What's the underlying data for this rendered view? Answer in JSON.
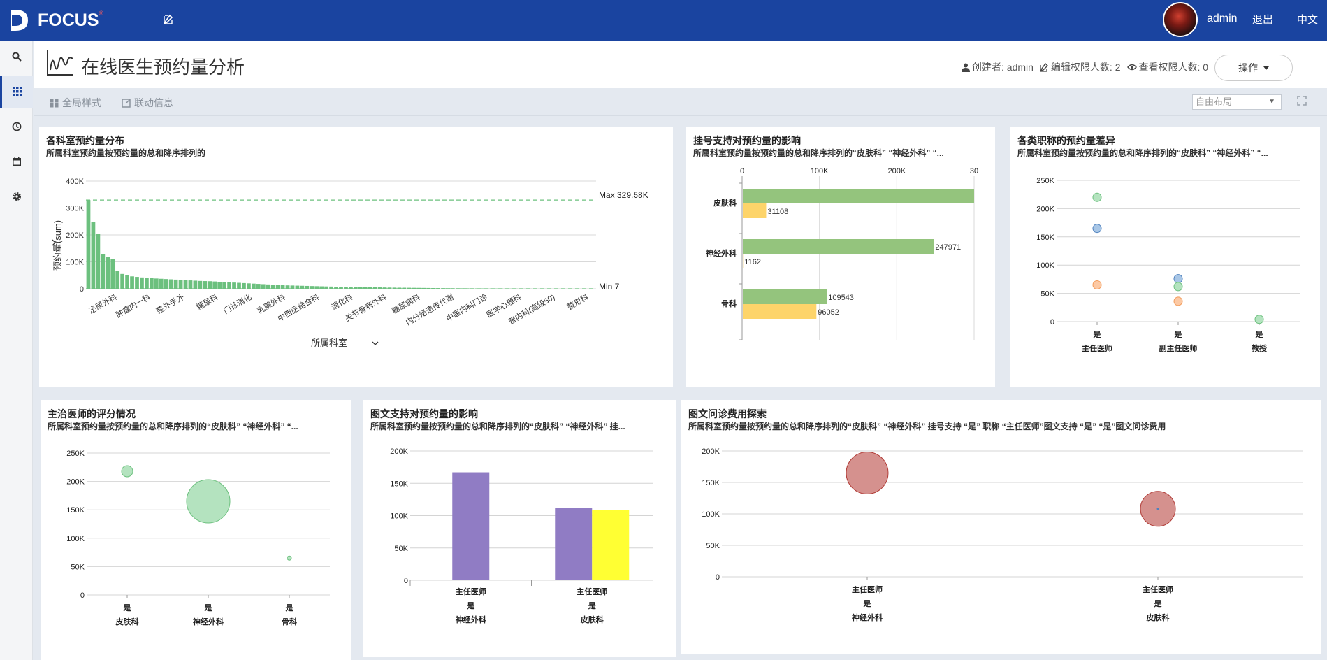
{
  "app": {
    "brand": "FOCUS",
    "brand_mark": "®",
    "user": "admin",
    "logout": "退出",
    "lang": "中文"
  },
  "page": {
    "title": "在线医生预约量分析",
    "creator": "创建者: admin",
    "edit_perm": "编辑权限人数: 2",
    "view_perm": "查看权限人数: 0",
    "op_label": "操作"
  },
  "toolbar": {
    "global_style": "全局样式",
    "link_info": "联动信息",
    "layout_value": "自由布局"
  },
  "panels": {
    "p1": {
      "title": "各科室预约量分布",
      "subtitle": "所属科室预约量按预约量的总和降序排列的"
    },
    "p2": {
      "title": "挂号支持对预约量的影响",
      "subtitle": "所属科室预约量按预约量的总和降序排列的“皮肤科” “神经外科” “..."
    },
    "p3": {
      "title": "各类职称的预约量差异",
      "subtitle": "所属科室预约量按预约量的总和降序排列的“皮肤科” “神经外科” “..."
    },
    "p4": {
      "title": "主治医师的评分情况",
      "subtitle": "所属科室预约量按预约量的总和降序排列的“皮肤科” “神经外科” “..."
    },
    "p5": {
      "title": "图文支持对预约量的影响",
      "subtitle": "所属科室预约量按预约量的总和降序排列的“皮肤科” “神经外科” 挂..."
    },
    "p6": {
      "title": "图文问诊费用探索",
      "subtitle": "所属科室预约量按预约量的总和降序排列的“皮肤科” “神经外科” 挂号支持 “是” 职称 “主任医师”图文支持 “是” “是”图文问诊费用"
    }
  },
  "chart_data": [
    {
      "type": "bar",
      "id": "dept-distribution",
      "xlabel": "所属科室",
      "ylabel": "预约量(sum)",
      "ylim": [
        0,
        400000
      ],
      "yticks": [
        "0",
        "100K",
        "200K",
        "300K",
        "400K"
      ],
      "max_label": "Max 329.58K",
      "min_label": "Min 7",
      "x_labels": [
        "泌尿外科",
        "肿瘤内一科",
        "整外手外",
        "糖尿科",
        "门诊消化",
        "乳腺外科",
        "中西医结合科",
        "消化科",
        "关节骨病外科",
        "糖尿病科",
        "内分泌遗传代谢",
        "中医内科门诊",
        "医学心理科",
        "普内科(高级50)",
        "整形科"
      ],
      "values": [
        329580,
        247971,
        205000,
        128000,
        118000,
        110000,
        65000,
        55000,
        50000,
        46000,
        44000,
        42000,
        40000,
        39000,
        38000,
        37000,
        36000,
        35000,
        34000,
        33000,
        32000,
        31000,
        30000,
        29000,
        28500,
        28000,
        27000,
        26000,
        25000,
        24000,
        23000,
        22000,
        21000,
        20000,
        19000,
        18000,
        17000,
        16000,
        15000,
        14000,
        13000,
        12500,
        12000,
        11500,
        11000,
        10500,
        10000,
        9500,
        9000,
        8600,
        8200,
        7800,
        7500,
        7200,
        6900,
        6600,
        6300,
        6000,
        5700,
        5400,
        5100,
        4800,
        4500,
        4200,
        4000,
        3800,
        3600,
        3400,
        3200,
        3000,
        2800,
        2600,
        2400,
        2200,
        2000,
        1800,
        1700,
        1600,
        1500,
        1400,
        1300,
        1200,
        1100,
        1000,
        900,
        800,
        700,
        600,
        500,
        450,
        400,
        350,
        300,
        250,
        200,
        150,
        120,
        100,
        80,
        60,
        40,
        30,
        20,
        10,
        7
      ]
    },
    {
      "type": "bar",
      "id": "registration-support",
      "orientation": "horizontal",
      "categories": [
        "皮肤科",
        "神经外科",
        "骨科"
      ],
      "xticks": [
        "0",
        "100K",
        "200K",
        "30"
      ],
      "xlim": [
        0,
        300000
      ],
      "series": [
        {
          "name": "是",
          "color": "#94c47d",
          "values": [
            300000,
            247971,
            109543
          ],
          "labels": [
            "",
            "247971",
            "109543"
          ]
        },
        {
          "name": "否",
          "color": "#fdd46a",
          "values": [
            31108,
            1162,
            96052
          ],
          "labels": [
            "31108",
            "1162",
            "96052"
          ]
        }
      ]
    },
    {
      "type": "scatter",
      "id": "title-difference",
      "ylim": [
        0,
        250000
      ],
      "yticks": [
        "0",
        "50K",
        "100K",
        "150K",
        "200K",
        "250K"
      ],
      "categories": [
        {
          "top": "是",
          "bottom": "主任医师"
        },
        {
          "top": "是",
          "bottom": "副主任医师"
        },
        {
          "top": "是",
          "bottom": "教授"
        }
      ],
      "points": [
        {
          "cat": 0,
          "y": 220000,
          "r": 6,
          "color": "#b4e3bf",
          "stroke": "#6cc07e"
        },
        {
          "cat": 0,
          "y": 165000,
          "r": 6,
          "color": "#a8c6e6",
          "stroke": "#4f81bd"
        },
        {
          "cat": 0,
          "y": 65000,
          "r": 6,
          "color": "#fcc9a4",
          "stroke": "#f29c5c"
        },
        {
          "cat": 1,
          "y": 76000,
          "r": 6,
          "color": "#a8c6e6",
          "stroke": "#4f81bd"
        },
        {
          "cat": 1,
          "y": 62000,
          "r": 6,
          "color": "#b4e3bf",
          "stroke": "#6cc07e"
        },
        {
          "cat": 1,
          "y": 36000,
          "r": 6,
          "color": "#fcc9a4",
          "stroke": "#f29c5c"
        },
        {
          "cat": 2,
          "y": 4000,
          "r": 6,
          "color": "#b4e3bf",
          "stroke": "#6cc07e"
        }
      ]
    },
    {
      "type": "scatter",
      "id": "doctor-rating",
      "ylim": [
        0,
        250000
      ],
      "yticks": [
        "0",
        "50K",
        "100K",
        "150K",
        "200K",
        "250K"
      ],
      "categories": [
        {
          "top": "是",
          "bottom": "皮肤科"
        },
        {
          "top": "是",
          "bottom": "神经外科"
        },
        {
          "top": "是",
          "bottom": "骨科"
        }
      ],
      "points": [
        {
          "cat": 0,
          "y": 218000,
          "r": 8,
          "color": "#b4e3bf",
          "stroke": "#6cc07e"
        },
        {
          "cat": 1,
          "y": 165000,
          "r": 31,
          "color": "#b4e3bf",
          "stroke": "#6cc07e"
        },
        {
          "cat": 2,
          "y": 65000,
          "r": 3,
          "color": "#b4e3bf",
          "stroke": "#6cc07e"
        }
      ]
    },
    {
      "type": "bar",
      "id": "imagetext-support",
      "ylim": [
        0,
        200000
      ],
      "yticks": [
        "0",
        "50K",
        "100K",
        "150K",
        "200K"
      ],
      "groups": [
        {
          "labels": [
            "主任医师",
            "是",
            "神经外科"
          ],
          "bars": [
            {
              "value": 167000,
              "color": "#907cc4"
            }
          ]
        },
        {
          "labels": [
            "主任医师",
            "是",
            "皮肤科"
          ],
          "bars": [
            {
              "value": 112000,
              "color": "#907cc4"
            },
            {
              "value": 109000,
              "color": "#ffff33"
            }
          ]
        }
      ]
    },
    {
      "type": "scatter",
      "id": "imagetext-fee",
      "ylim": [
        0,
        200000
      ],
      "yticks": [
        "0",
        "50K",
        "100K",
        "150K",
        "200K"
      ],
      "categories": [
        {
          "lines": [
            "主任医师",
            "是",
            "神经外科"
          ]
        },
        {
          "lines": [
            "主任医师",
            "是",
            "皮肤科"
          ]
        }
      ],
      "points": [
        {
          "cat": 0,
          "y": 165000,
          "r": 30,
          "color": "#d5918e",
          "stroke": "#b03a35"
        },
        {
          "cat": 1,
          "y": 108000,
          "r": 25,
          "color": "#d5918e",
          "stroke": "#b03a35"
        }
      ]
    }
  ]
}
